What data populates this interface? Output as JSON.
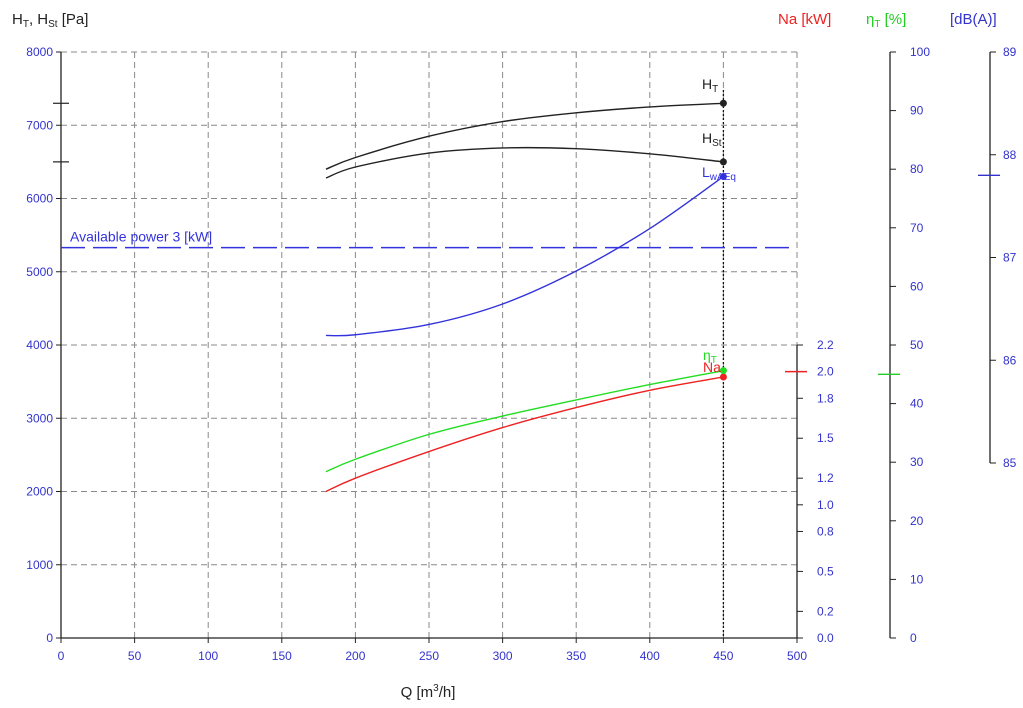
{
  "chart_data": {
    "type": "line",
    "x_axis": {
      "label_base": "Q [m",
      "label_sup": "3",
      "label_tail": "/h]",
      "range": [
        0,
        500
      ],
      "ticks": [
        0,
        50,
        100,
        150,
        200,
        250,
        300,
        350,
        400,
        450,
        500
      ],
      "tick_labels": [
        "0",
        "50",
        "100",
        "150",
        "200",
        "250",
        "300",
        "350",
        "400",
        "450",
        "500"
      ],
      "tick_color": "#3333cc"
    },
    "left_axis": {
      "label_h": "H",
      "label_t": "T",
      "label_sep": ", H",
      "label_st": "St",
      "label_unit": " [Pa]",
      "range": [
        0,
        8000
      ],
      "ticks": [
        0,
        1000,
        2000,
        3000,
        4000,
        5000,
        6000,
        7000,
        8000
      ],
      "tick_labels": [
        "0",
        "1000",
        "2000",
        "3000",
        "4000",
        "5000",
        "6000",
        "7000",
        "8000"
      ],
      "color": "#3333cc"
    },
    "power_axis": {
      "label": "Na [kW]",
      "range": [
        0,
        2.2
      ],
      "ticks": [
        0.0,
        0.2,
        0.5,
        0.8,
        1.0,
        1.2,
        1.5,
        1.8,
        2.0,
        2.2
      ],
      "tick_labels": [
        "0.0",
        "0.2",
        "0.5",
        "0.8",
        "1.0",
        "1.2",
        "1.5",
        "1.8",
        "2.0",
        "2.2"
      ],
      "color": "#ee2222"
    },
    "efficiency_axis": {
      "label_eta": "η",
      "label_sub": "T",
      "label_unit": " [%]",
      "range": [
        0,
        100
      ],
      "ticks": [
        0,
        10,
        20,
        30,
        40,
        50,
        60,
        70,
        80,
        90,
        100
      ],
      "tick_labels": [
        "0",
        "10",
        "20",
        "30",
        "40",
        "50",
        "60",
        "70",
        "80",
        "90",
        "100"
      ],
      "color": "#22cc22"
    },
    "sound_axis": {
      "label": "[dB(A)]",
      "range": [
        85,
        89
      ],
      "ticks": [
        85,
        86,
        87,
        88,
        89
      ],
      "tick_labels": [
        "85",
        "86",
        "87",
        "88",
        "89"
      ],
      "color": "#3333cc"
    },
    "grid": true,
    "operating_point": {
      "Q": 450,
      "HT": 7300,
      "HSt": 6500,
      "Na": 2.0,
      "eta": 45,
      "LwA": 87.8
    },
    "series": [
      {
        "label_main": "H",
        "label_sub": "T",
        "axis": "left",
        "color": "#222222",
        "x": [
          180,
          200,
          250,
          300,
          350,
          400,
          450
        ],
        "y": [
          6400,
          6560,
          6850,
          7050,
          7170,
          7250,
          7300
        ]
      },
      {
        "label_main": "H",
        "label_sub": "St",
        "axis": "left",
        "color": "#222222",
        "x": [
          180,
          200,
          250,
          300,
          350,
          400,
          450
        ],
        "y": [
          6280,
          6430,
          6620,
          6690,
          6680,
          6610,
          6500
        ]
      },
      {
        "label_main": "L",
        "label_sub": "wA",
        "label_main2": "",
        "label_sub2": "Eq",
        "axis": "left",
        "color": "#3333dd",
        "x": [
          180,
          200,
          250,
          300,
          350,
          400,
          450
        ],
        "y": [
          4130,
          4140,
          4280,
          4560,
          5010,
          5590,
          6300
        ]
      },
      {
        "label_main": "Na",
        "label_sub": "",
        "axis": "power",
        "color": "#ee2222",
        "x": [
          180,
          200,
          250,
          300,
          350,
          400,
          450
        ],
        "y": [
          1.1,
          1.2,
          1.4,
          1.58,
          1.73,
          1.86,
          1.96
        ]
      },
      {
        "label_main": "η",
        "label_sub": "T",
        "axis": "left",
        "color": "#22dd22",
        "x": [
          180,
          200,
          250,
          300,
          350,
          400,
          450
        ],
        "y": [
          2270,
          2440,
          2780,
          3030,
          3250,
          3460,
          3650
        ]
      }
    ],
    "annotations": [
      {
        "text": "Available power 3 [kW]",
        "axis": "left",
        "y": 5330,
        "x_range": [
          0,
          500
        ],
        "color": "#3333dd"
      }
    ]
  }
}
